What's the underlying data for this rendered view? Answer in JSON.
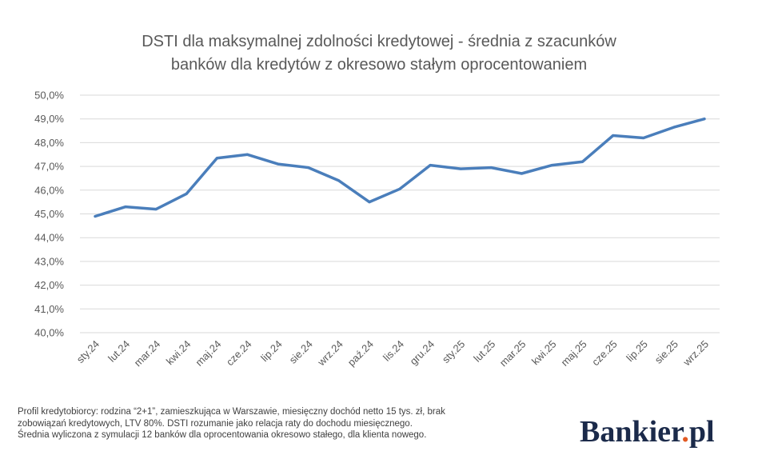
{
  "chart_data": {
    "type": "line",
    "title": [
      "DSTI dla maksymalnej zdolności kredytowej - średnia z szacunków",
      "banków dla kredytów z okresowo stałym oprocentowaniem"
    ],
    "xlabel": "",
    "ylabel": "",
    "categories": [
      "sty.24",
      "lut.24",
      "mar.24",
      "kwi.24",
      "maj.24",
      "cze.24",
      "lip.24",
      "sie.24",
      "wrz.24",
      "paź.24",
      "lis.24",
      "gru.24",
      "sty.25",
      "lut.25",
      "mar.25",
      "kwi.25",
      "maj.25",
      "cze.25",
      "lip.25",
      "sie.25",
      "wrz.25"
    ],
    "series": [
      {
        "values": [
          44.9,
          45.3,
          45.2,
          45.85,
          47.35,
          47.5,
          47.1,
          46.95,
          46.4,
          45.5,
          46.05,
          47.05,
          46.9,
          46.95,
          46.7,
          47.05,
          47.2,
          48.3,
          48.2,
          48.65,
          49.0
        ],
        "color": "#4a7ebb"
      }
    ],
    "ylim": [
      40,
      50
    ],
    "yticks": [
      "40,0%",
      "41,0%",
      "42,0%",
      "43,0%",
      "44,0%",
      "45,0%",
      "46,0%",
      "47,0%",
      "48,0%",
      "49,0%",
      "50,0%"
    ],
    "grid": true,
    "legend": "none"
  },
  "footnote": [
    "Profil kredytobiorcy: rodzina “2+1”, zamieszkująca w Warszawie, miesięczny dochód netto 15 tys. zł, brak",
    "zobowiązań kredytowych, LTV 80%. DSTI rozumanie jako relacja raty do dochodu miesięcznego.",
    "Średnia wyliczona z symulacji 12 banków dla oprocentowania okresowo stałego, dla klienta nowego."
  ],
  "logo": {
    "text": "Bankier",
    "dot": ".",
    "suffix": "pl",
    "colors": {
      "text": "#1b2a4a",
      "dot": "#e25a23"
    }
  }
}
